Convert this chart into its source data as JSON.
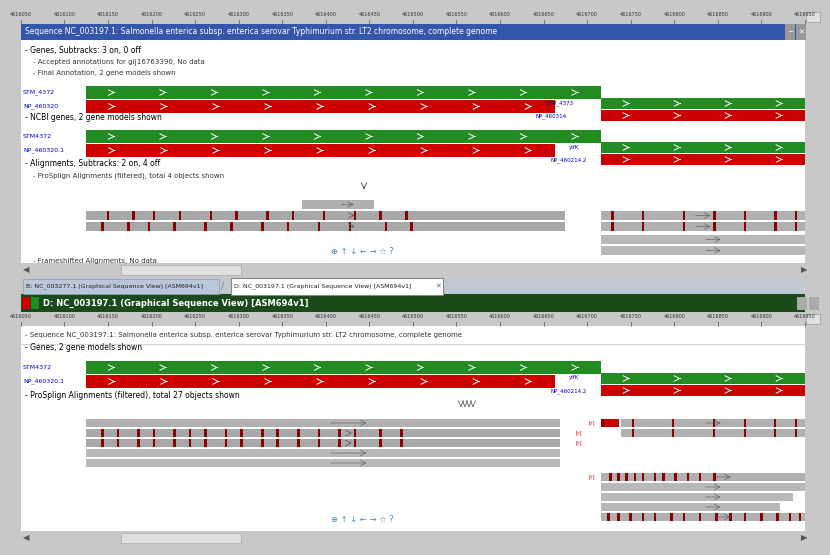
{
  "ruler_ticks": [
    4616050,
    4616100,
    4616150,
    4616200,
    4616250,
    4616300,
    4616350,
    4616400,
    4616450,
    4616500,
    4616550,
    4616600,
    4616650,
    4616700,
    4616750,
    4616800,
    4616850,
    4616900,
    4616950
  ],
  "colors": {
    "window_bg": "#c8c8c8",
    "blue_header": "#3355aa",
    "green_header": "#336633",
    "content_bg": "#ffffff",
    "ruler_bg": "#c8c8c8",
    "gene_green": "#228b22",
    "gene_red": "#cc0000",
    "gray_bar": "#a8a8a8",
    "dark_red": "#8b0000",
    "scrollbar": "#d0d0d0",
    "tab_inactive": "#b8c8d8",
    "tab_active": "#ffffff",
    "section_bg": "#e8e8e8",
    "grid_line": "#d8d8d8",
    "text_black": "#000000",
    "text_dark": "#222222",
    "text_blue": "#0000cc",
    "text_gray": "#555555"
  }
}
